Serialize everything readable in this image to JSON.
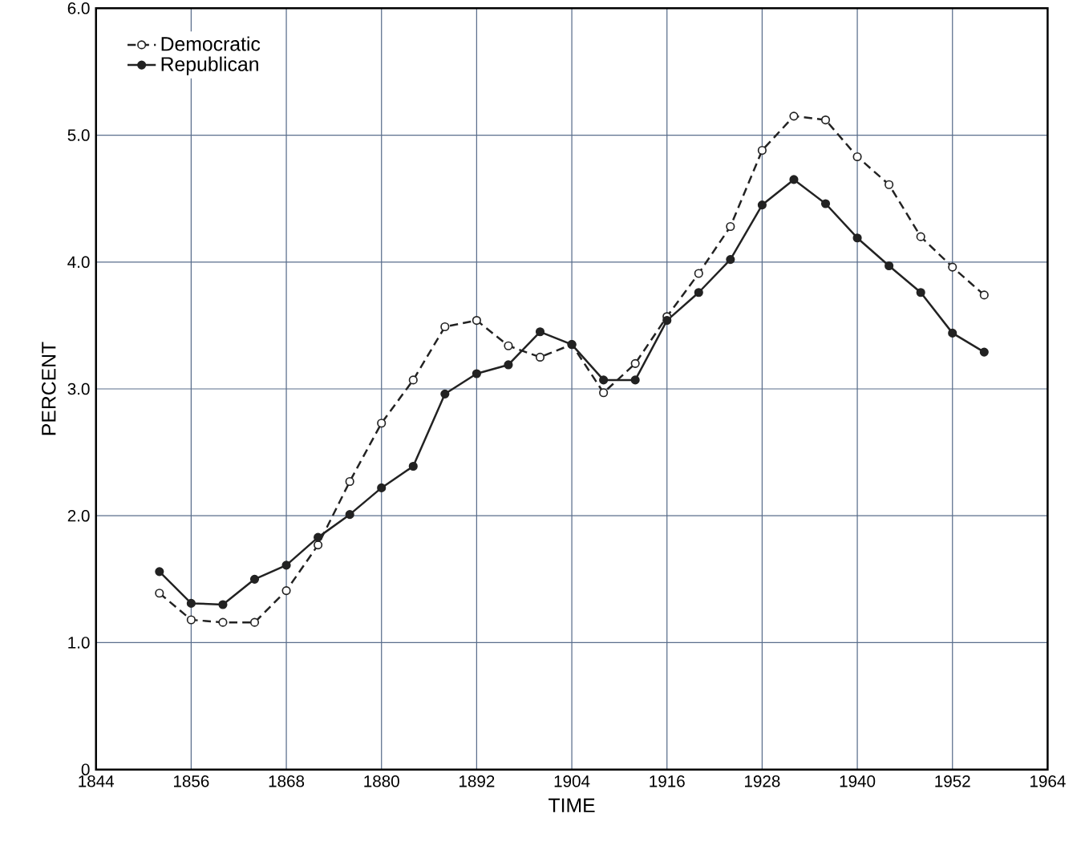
{
  "chart_data": {
    "type": "line",
    "xlabel": "TIME",
    "ylabel": "PERCENT",
    "x": [
      1852,
      1856,
      1860,
      1864,
      1868,
      1872,
      1876,
      1880,
      1884,
      1888,
      1892,
      1896,
      1900,
      1904,
      1908,
      1912,
      1916,
      1920,
      1924,
      1928,
      1932,
      1936,
      1940,
      1944,
      1948,
      1952,
      1956
    ],
    "series": [
      {
        "name": "Democratic",
        "color": "#222222",
        "line_style": "dashed",
        "values": [
          1.39,
          1.18,
          1.16,
          1.16,
          1.41,
          1.77,
          2.27,
          2.73,
          3.07,
          3.49,
          3.54,
          3.34,
          3.25,
          3.35,
          2.97,
          3.2,
          3.57,
          3.91,
          4.28,
          4.88,
          5.15,
          5.12,
          4.83,
          4.61,
          4.2,
          3.96,
          3.74
        ]
      },
      {
        "name": "Republican",
        "color": "#222222",
        "line_style": "solid",
        "values": [
          1.56,
          1.31,
          1.3,
          1.5,
          1.61,
          1.83,
          2.01,
          2.22,
          2.39,
          2.96,
          3.12,
          3.19,
          3.45,
          3.35,
          3.07,
          3.07,
          3.54,
          3.76,
          4.02,
          4.45,
          4.65,
          4.46,
          4.19,
          3.97,
          3.76,
          3.44,
          3.29
        ]
      }
    ],
    "marker": "circle",
    "grid": true,
    "legend": "top left",
    "xlim": [
      1844,
      1964
    ],
    "xticks": [
      1844,
      1856,
      1868,
      1880,
      1892,
      1904,
      1916,
      1928,
      1940,
      1952,
      1964
    ],
    "ylim": [
      0,
      6
    ],
    "yticks": [
      {
        "value": 0,
        "label": "0"
      },
      {
        "value": 1,
        "label": "1.0"
      },
      {
        "value": 2,
        "label": "2.0"
      },
      {
        "value": 3,
        "label": "3.0"
      },
      {
        "value": 4,
        "label": "4.0"
      },
      {
        "value": 5,
        "label": "5.0"
      },
      {
        "value": 6,
        "label": "6.0"
      }
    ]
  }
}
